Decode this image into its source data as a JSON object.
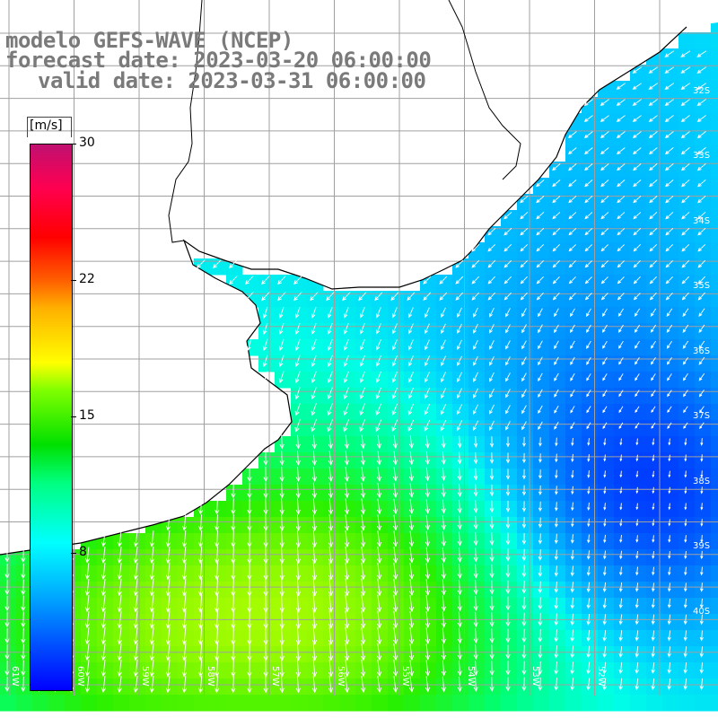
{
  "title": {
    "line1": "modelo GEFS-WAVE (NCEP)",
    "line2": "forecast date: 2023-03-20 06:00:00",
    "line3": "valid date: 2023-03-31 06:00:00"
  },
  "colorbar": {
    "unit": "[m/s]",
    "ticks": [
      "30",
      "22",
      "15",
      "8"
    ],
    "min_value": 0,
    "max_value": 30,
    "colors": [
      "#0000ff",
      "#00b0ff",
      "#00ffff",
      "#00e000",
      "#ffff00",
      "#ff6000",
      "#ff0000",
      "#c01070"
    ]
  },
  "axes": {
    "lat_labels": [
      "32S",
      "33S",
      "34S",
      "35S",
      "36S",
      "37S",
      "38S",
      "39S",
      "40S"
    ],
    "lon_labels": [
      "61W",
      "60W",
      "59W",
      "58W",
      "57W",
      "56W",
      "55W",
      "54W",
      "53W",
      "52W"
    ]
  },
  "map": {
    "region": "South Atlantic off Uruguay / Buenos Aires",
    "land_color": "#ffffff",
    "grid_color": "#a0a0a0",
    "arrow_color": "#ffffff",
    "coast_color": "#000000"
  }
}
